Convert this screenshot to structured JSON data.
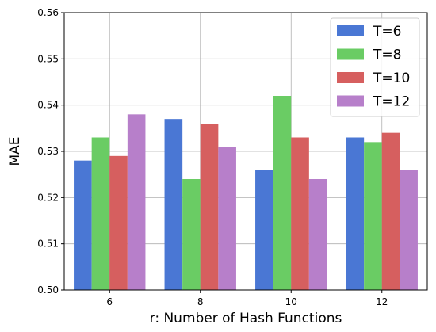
{
  "chart_data": {
    "type": "bar",
    "title": "",
    "xlabel": "r: Number of Hash Functions",
    "ylabel": "MAE",
    "categories": [
      "6",
      "8",
      "10",
      "12"
    ],
    "ylim": [
      0.5,
      0.56
    ],
    "yticks": [
      "0.50",
      "0.51",
      "0.52",
      "0.53",
      "0.54",
      "0.55",
      "0.56"
    ],
    "grid": true,
    "legend_position": "top-right",
    "series": [
      {
        "name": "T=6",
        "color": "#4a77d4",
        "values": [
          0.528,
          0.537,
          0.526,
          0.533
        ]
      },
      {
        "name": "T=8",
        "color": "#6acc64",
        "values": [
          0.533,
          0.524,
          0.542,
          0.532
        ]
      },
      {
        "name": "T=10",
        "color": "#d65f5f",
        "values": [
          0.529,
          0.536,
          0.533,
          0.534
        ]
      },
      {
        "name": "T=12",
        "color": "#b77fca",
        "values": [
          0.538,
          0.531,
          0.524,
          0.526
        ]
      }
    ]
  }
}
